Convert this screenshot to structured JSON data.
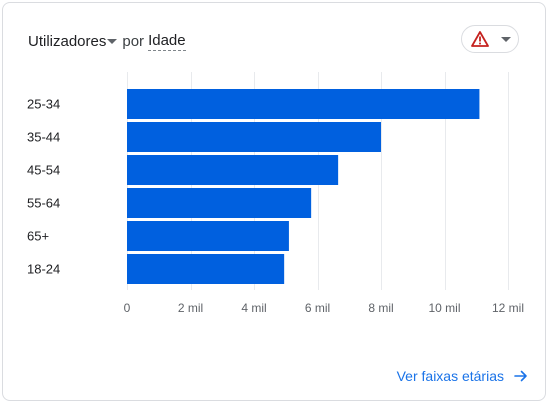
{
  "header": {
    "metric": "Utilizadores",
    "connector": "por",
    "dimension": "Idade"
  },
  "alert_button": {
    "icon": "warning-icon",
    "dropdown_icon": "chevron-down-icon",
    "warning_color": "#c5221f"
  },
  "footer": {
    "link_label": "Ver faixas etárias",
    "link_icon": "arrow-right-icon"
  },
  "chart_data": {
    "type": "bar",
    "orientation": "horizontal",
    "categories": [
      "25-34",
      "35-44",
      "45-54",
      "55-64",
      "65+",
      "18-24"
    ],
    "values": [
      11100,
      8000,
      6650,
      5800,
      5100,
      4950
    ],
    "xlim": [
      0,
      12000
    ],
    "x_ticks": [
      0,
      2000,
      4000,
      6000,
      8000,
      10000,
      12000
    ],
    "x_tick_labels": [
      "0",
      "2 mil",
      "4 mil",
      "6 mil",
      "8 mil",
      "10 mil",
      "12 mil"
    ],
    "bar_color": "#0060df",
    "grid": "vertical",
    "legend": "none"
  }
}
